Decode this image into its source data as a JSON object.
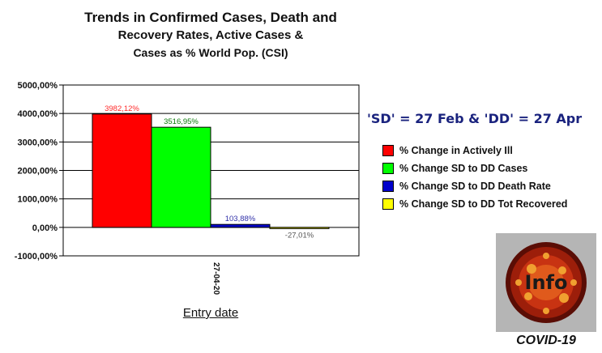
{
  "chart_data": {
    "type": "bar",
    "title_lines": [
      "Trends in Confirmed Cases, Death and",
      "Recovery Rates, Active Cases &",
      "Cases as % World Pop. (CSI)"
    ],
    "subtitle": "'SD' = 27 Feb & 'DD' = 27 Apr",
    "xlabel": "Entry date",
    "categories": [
      "27-04-20"
    ],
    "ylim": [
      -1000,
      5000
    ],
    "yticks": [
      -1000,
      0,
      1000,
      2000,
      3000,
      4000,
      5000
    ],
    "ytick_labels": [
      "-1000,00%",
      "0,00%",
      "1000,00%",
      "2000,00%",
      "3000,00%",
      "4000,00%",
      "5000,00%"
    ],
    "grid": true,
    "legend_position": "right",
    "series": [
      {
        "name": "% Change in Actively Ill",
        "values": [
          3982.12
        ],
        "label": "3982,12%",
        "color": "#ff0000",
        "label_color": "#ff2a2a"
      },
      {
        "name": "% Change SD to DD Cases",
        "values": [
          3516.95
        ],
        "label": "3516,95%",
        "color": "#00ff00",
        "label_color": "#0a7a0a"
      },
      {
        "name": "% Change SD to DD Death Rate",
        "values": [
          103.88
        ],
        "label": "103,88%",
        "color": "#0000cc",
        "label_color": "#3333aa"
      },
      {
        "name": "% Change SD to DD Tot Recovered",
        "values": [
          -27.01
        ],
        "label": "-27,01%",
        "color": "#ffff00",
        "label_color": "#555555"
      }
    ]
  },
  "logo": {
    "text": "Info",
    "caption": "COVID-19"
  }
}
